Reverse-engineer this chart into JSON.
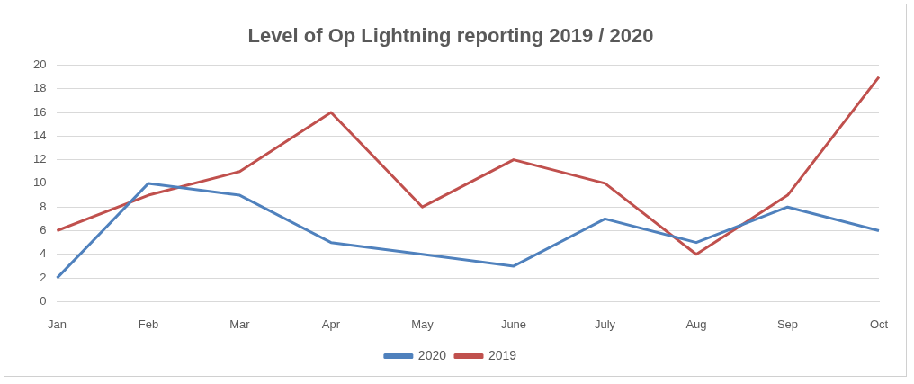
{
  "chart_data": {
    "type": "line",
    "title": "Level of Op Lightning reporting 2019 / 2020",
    "categories": [
      "Jan",
      "Feb",
      "Mar",
      "Apr",
      "May",
      "June",
      "July",
      "Aug",
      "Sep",
      "Oct"
    ],
    "series": [
      {
        "name": "2020",
        "color": "#4f81bd",
        "values": [
          2,
          10,
          9,
          5,
          4,
          3,
          7,
          5,
          8,
          6
        ]
      },
      {
        "name": "2019",
        "color": "#c0504d",
        "values": [
          6,
          9,
          11,
          16,
          8,
          12,
          10,
          4,
          9,
          19
        ]
      }
    ],
    "ylim": [
      0,
      20
    ],
    "yticks": [
      0,
      2,
      4,
      6,
      8,
      10,
      12,
      14,
      16,
      18,
      20
    ],
    "grid": "y",
    "legend": "bottom",
    "marker": "none",
    "line_style": "solid"
  }
}
